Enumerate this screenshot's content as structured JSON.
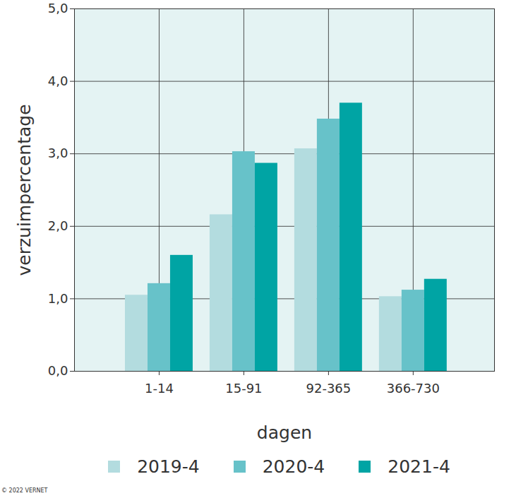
{
  "chart_data": {
    "type": "bar",
    "categories": [
      "1-14",
      "15-91",
      "92-365",
      "366-730"
    ],
    "series": [
      {
        "name": "2019-4",
        "color": "#b3dcdf",
        "values": [
          1.05,
          2.16,
          3.07,
          1.03
        ]
      },
      {
        "name": "2020-4",
        "color": "#67c2c9",
        "values": [
          1.21,
          3.03,
          3.48,
          1.12
        ]
      },
      {
        "name": "2021-4",
        "color": "#00a4a4",
        "values": [
          1.6,
          2.87,
          3.7,
          1.27
        ]
      }
    ],
    "x_label": "dagen",
    "y_label": "verzuimpercentage",
    "ylim": [
      0,
      5
    ],
    "yticks": [
      {
        "value": 0,
        "label": "0,0"
      },
      {
        "value": 1,
        "label": "1,0"
      },
      {
        "value": 2,
        "label": "2,0"
      },
      {
        "value": 3,
        "label": "3,0"
      },
      {
        "value": 4,
        "label": "4,0"
      },
      {
        "value": 5,
        "label": "5,0"
      }
    ],
    "grid": true,
    "legend": "bottom",
    "source": "© 2022 VERNET"
  }
}
